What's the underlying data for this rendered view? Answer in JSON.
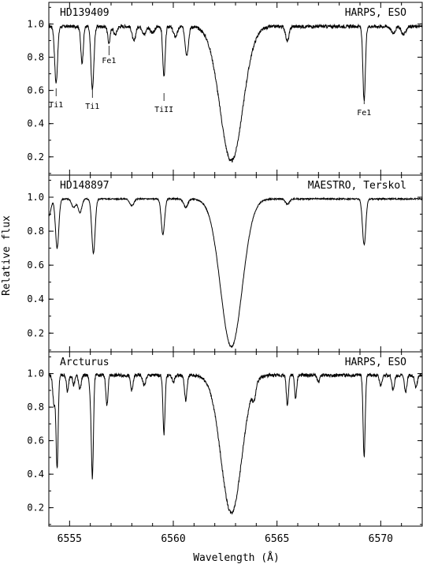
{
  "figure": {
    "ylabel": "Relative flux",
    "xlabel": "Wavelength (Å)"
  },
  "chart_data": [
    {
      "type": "line",
      "star": "HD139409",
      "source": "HARPS, ESO",
      "xlim": [
        6554,
        6572
      ],
      "ylim": [
        0.09,
        1.13
      ],
      "yticks": [
        0.2,
        0.4,
        0.6,
        0.8,
        1.0
      ],
      "continuum": 0.985,
      "lines": [
        {
          "c": 6554.35,
          "d": 0.34,
          "w": 0.07
        },
        {
          "c": 6555.6,
          "d": 0.22,
          "w": 0.06
        },
        {
          "c": 6556.1,
          "d": 0.38,
          "w": 0.07
        },
        {
          "c": 6556.9,
          "d": 0.1,
          "w": 0.06
        },
        {
          "c": 6557.2,
          "d": 0.05,
          "w": 0.08
        },
        {
          "c": 6558.1,
          "d": 0.09,
          "w": 0.08
        },
        {
          "c": 6558.6,
          "d": 0.05,
          "w": 0.08
        },
        {
          "c": 6559.0,
          "d": 0.04,
          "w": 0.1
        },
        {
          "c": 6559.55,
          "d": 0.3,
          "w": 0.06
        },
        {
          "c": 6560.1,
          "d": 0.06,
          "w": 0.1
        },
        {
          "c": 6560.65,
          "d": 0.17,
          "w": 0.08
        },
        {
          "c": 6562.8,
          "d": 0.81,
          "w": 0.55
        },
        {
          "c": 6565.5,
          "d": 0.09,
          "w": 0.08
        },
        {
          "c": 6569.2,
          "d": 0.45,
          "w": 0.06
        },
        {
          "c": 6570.6,
          "d": 0.04,
          "w": 0.1
        },
        {
          "c": 6571.1,
          "d": 0.05,
          "w": 0.1
        }
      ],
      "line_ids": [
        {
          "x": 6554.35,
          "label": "Ti1"
        },
        {
          "x": 6556.1,
          "label": "Ti1"
        },
        {
          "x": 6556.9,
          "label": "Fe1"
        },
        {
          "x": 6559.55,
          "label": "TiII"
        },
        {
          "x": 6569.2,
          "label": "Fe1"
        }
      ]
    },
    {
      "type": "line",
      "star": "HD148897",
      "source": "MAESTRO, Terskol",
      "xlim": [
        6554,
        6572
      ],
      "ylim": [
        0.09,
        1.13
      ],
      "yticks": [
        0.2,
        0.4,
        0.6,
        0.8,
        1.0
      ],
      "continuum": 0.99,
      "lines": [
        {
          "c": 6554.0,
          "d": 0.1,
          "w": 0.1
        },
        {
          "c": 6554.4,
          "d": 0.29,
          "w": 0.08
        },
        {
          "c": 6555.2,
          "d": 0.05,
          "w": 0.1
        },
        {
          "c": 6555.5,
          "d": 0.08,
          "w": 0.09
        },
        {
          "c": 6556.15,
          "d": 0.32,
          "w": 0.08
        },
        {
          "c": 6558.0,
          "d": 0.04,
          "w": 0.1
        },
        {
          "c": 6559.5,
          "d": 0.21,
          "w": 0.08
        },
        {
          "c": 6560.6,
          "d": 0.05,
          "w": 0.1
        },
        {
          "c": 6562.8,
          "d": 0.87,
          "w": 0.52
        },
        {
          "c": 6565.5,
          "d": 0.03,
          "w": 0.1
        },
        {
          "c": 6569.2,
          "d": 0.27,
          "w": 0.08
        }
      ]
    },
    {
      "type": "line",
      "star": "Arcturus",
      "source": "HARPS, ESO",
      "xlim": [
        6554,
        6572
      ],
      "ylim": [
        0.09,
        1.13
      ],
      "yticks": [
        0.2,
        0.4,
        0.6,
        0.8,
        1.0
      ],
      "continuum": 0.99,
      "lines": [
        {
          "c": 6554.25,
          "d": 0.17,
          "w": 0.06
        },
        {
          "c": 6554.4,
          "d": 0.55,
          "w": 0.05
        },
        {
          "c": 6554.9,
          "d": 0.1,
          "w": 0.05
        },
        {
          "c": 6555.2,
          "d": 0.06,
          "w": 0.05
        },
        {
          "c": 6555.5,
          "d": 0.08,
          "w": 0.06
        },
        {
          "c": 6556.0,
          "d": 0.09,
          "w": 0.05
        },
        {
          "c": 6556.1,
          "d": 0.6,
          "w": 0.05
        },
        {
          "c": 6556.8,
          "d": 0.18,
          "w": 0.05
        },
        {
          "c": 6558.0,
          "d": 0.09,
          "w": 0.06
        },
        {
          "c": 6558.6,
          "d": 0.06,
          "w": 0.07
        },
        {
          "c": 6559.55,
          "d": 0.35,
          "w": 0.05
        },
        {
          "c": 6560.0,
          "d": 0.04,
          "w": 0.06
        },
        {
          "c": 6560.6,
          "d": 0.15,
          "w": 0.06
        },
        {
          "c": 6562.8,
          "d": 0.82,
          "w": 0.5
        },
        {
          "c": 6563.9,
          "d": 0.08,
          "w": 0.08
        },
        {
          "c": 6565.5,
          "d": 0.18,
          "w": 0.05
        },
        {
          "c": 6565.9,
          "d": 0.14,
          "w": 0.05
        },
        {
          "c": 6567.0,
          "d": 0.04,
          "w": 0.06
        },
        {
          "c": 6569.2,
          "d": 0.49,
          "w": 0.05
        },
        {
          "c": 6570.0,
          "d": 0.06,
          "w": 0.06
        },
        {
          "c": 6570.6,
          "d": 0.09,
          "w": 0.06
        },
        {
          "c": 6571.2,
          "d": 0.1,
          "w": 0.06
        },
        {
          "c": 6571.7,
          "d": 0.07,
          "w": 0.06
        }
      ]
    }
  ],
  "xticks": [
    6555,
    6560,
    6565,
    6570
  ]
}
